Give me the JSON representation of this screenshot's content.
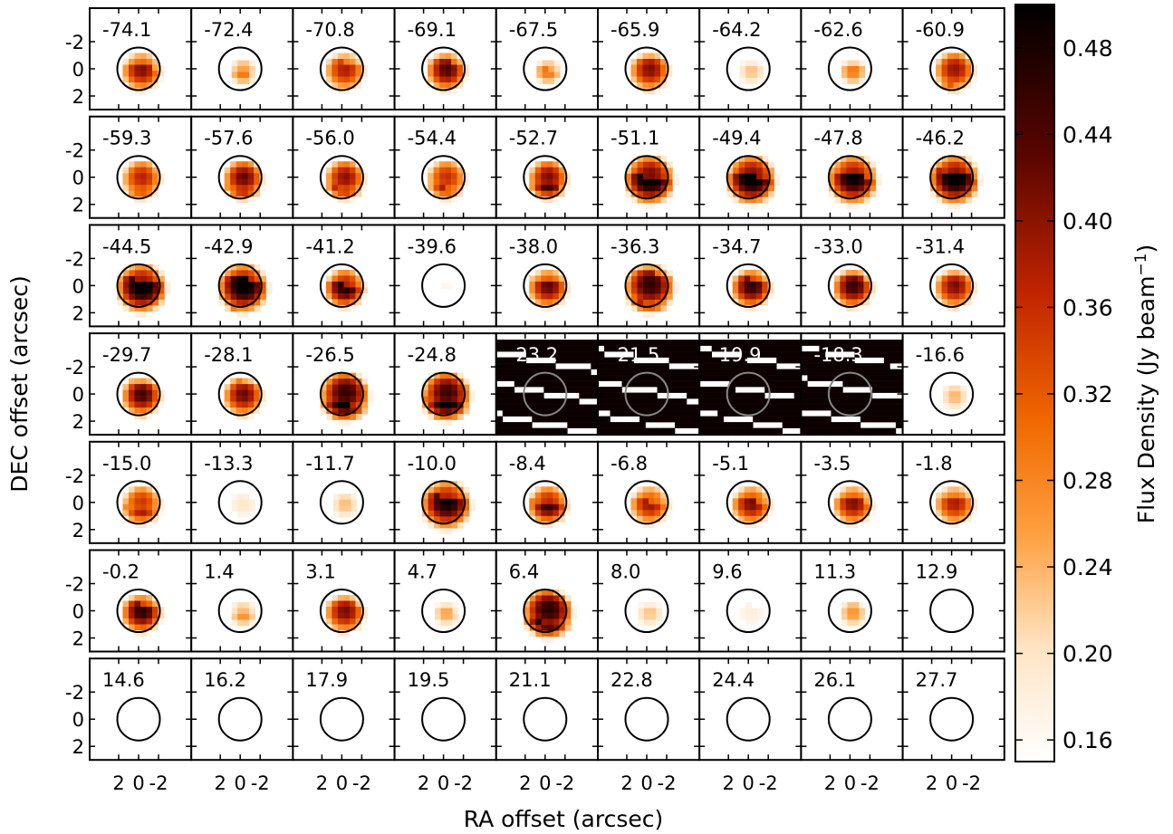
{
  "chart_data": {
    "type": "heatmap",
    "subtype": "channel-map grid",
    "rows": 7,
    "cols": 9,
    "velocity_labels": [
      "-74.1",
      "-72.4",
      "-70.8",
      "-69.1",
      "-67.5",
      "-65.9",
      "-64.2",
      "-62.6",
      "-60.9",
      "-59.3",
      "-57.6",
      "-56.0",
      "-54.4",
      "-52.7",
      "-51.1",
      "-49.4",
      "-47.8",
      "-46.2",
      "-44.5",
      "-42.9",
      "-41.2",
      "-39.6",
      "-38.0",
      "-36.3",
      "-34.7",
      "-33.0",
      "-31.4",
      "-29.7",
      "-28.1",
      "-26.5",
      "-24.8",
      "-23.2",
      "-21.5",
      "-19.9",
      "-18.3",
      "-16.6",
      "-15.0",
      "-13.3",
      "-11.7",
      "-10.0",
      "-8.4",
      "-6.8",
      "-5.1",
      "-3.5",
      "-1.8",
      "-0.2",
      "1.4",
      "3.1",
      "4.7",
      "6.4",
      "8.0",
      "9.6",
      "11.3",
      "12.9",
      "14.6",
      "16.2",
      "17.9",
      "19.5",
      "21.1",
      "22.8",
      "24.4",
      "26.1",
      "27.7"
    ],
    "peak_flux_estimate": [
      0.38,
      0.28,
      0.36,
      0.42,
      0.28,
      0.4,
      0.22,
      0.28,
      0.4,
      0.38,
      0.44,
      0.42,
      0.38,
      0.44,
      0.48,
      0.48,
      0.46,
      0.49,
      0.49,
      0.49,
      0.44,
      0.17,
      0.4,
      0.46,
      0.44,
      0.44,
      0.4,
      0.44,
      0.42,
      0.49,
      0.49,
      0.49,
      0.49,
      0.49,
      0.49,
      0.24,
      0.38,
      0.2,
      0.24,
      0.46,
      0.42,
      0.36,
      0.38,
      0.38,
      0.36,
      0.44,
      0.26,
      0.4,
      0.24,
      0.49,
      0.22,
      0.18,
      0.26,
      0.15,
      0.15,
      0.15,
      0.15,
      0.15,
      0.15,
      0.15,
      0.15,
      0.15,
      0.15
    ],
    "light_text_panels": [
      31,
      32,
      33,
      34
    ],
    "gray_circle_panels": [
      31,
      32,
      33,
      34
    ],
    "x_axis_label": "RA offset (arcsec)",
    "y_axis_label": "DEC offset (arcsec)",
    "x_tick_labels": [
      "2",
      "0",
      "-2"
    ],
    "y_tick_labels": [
      "-2",
      "0",
      "2"
    ],
    "x_range_arcsec": [
      3.9,
      -3.9
    ],
    "y_range_arcsec": [
      -3.9,
      3.9
    ],
    "colorbar": {
      "label": "Flux Density (Jy beam",
      "label_superscript": "−1",
      "label_suffix": ")",
      "min": 0.15,
      "max": 0.5,
      "tick_labels": [
        "0.48",
        "0.44",
        "0.40",
        "0.36",
        "0.32",
        "0.28",
        "0.24",
        "0.20",
        "0.16"
      ],
      "tick_values": [
        0.48,
        0.44,
        0.4,
        0.36,
        0.32,
        0.28,
        0.24,
        0.2,
        0.16
      ],
      "colormap": "gist_heat_r",
      "colormap_stops": [
        "#ffffff",
        "#ffd9b0",
        "#ff8a1a",
        "#e25500",
        "#a80d00",
        "#4a0300",
        "#000000"
      ]
    }
  }
}
